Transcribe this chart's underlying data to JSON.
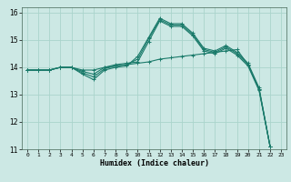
{
  "xlabel": "Humidex (Indice chaleur)",
  "bg_color": "#cce8e4",
  "grid_color": "#aad4cc",
  "line_color": "#1a7a6a",
  "xlim": [
    -0.5,
    23.5
  ],
  "ylim": [
    11,
    16.2
  ],
  "yticks": [
    11,
    12,
    13,
    14,
    15,
    16
  ],
  "xticks": [
    0,
    1,
    2,
    3,
    4,
    5,
    6,
    7,
    8,
    9,
    10,
    11,
    12,
    13,
    14,
    15,
    16,
    17,
    18,
    19,
    20,
    21,
    22,
    23
  ],
  "series": [
    {
      "x": [
        0,
        1,
        2,
        3,
        4,
        5,
        6,
        7,
        8,
        9,
        10,
        11,
        12,
        13,
        14,
        15,
        16,
        17,
        18,
        19,
        20,
        21,
        22
      ],
      "y": [
        13.9,
        13.9,
        13.9,
        14.0,
        14.0,
        13.9,
        13.9,
        14.0,
        14.05,
        14.1,
        14.15,
        14.2,
        14.3,
        14.35,
        14.4,
        14.45,
        14.5,
        14.55,
        14.6,
        14.65,
        14.1,
        13.2,
        11.1
      ]
    },
    {
      "x": [
        0,
        1,
        2,
        3,
        4,
        5,
        6,
        7,
        8,
        9,
        10,
        11,
        12,
        13,
        14,
        15,
        16,
        17,
        18,
        19,
        20,
        21,
        22
      ],
      "y": [
        13.9,
        13.9,
        13.9,
        14.0,
        14.0,
        13.75,
        13.55,
        13.9,
        14.0,
        14.05,
        14.4,
        15.1,
        15.8,
        15.6,
        15.6,
        15.25,
        14.7,
        14.6,
        14.8,
        14.55,
        14.15,
        13.25,
        11.1
      ]
    },
    {
      "x": [
        0,
        1,
        2,
        3,
        4,
        5,
        6,
        7,
        8,
        9,
        10,
        11,
        12,
        13,
        14,
        15,
        16,
        17,
        18,
        19,
        20,
        21,
        22
      ],
      "y": [
        13.9,
        13.9,
        13.9,
        14.0,
        14.0,
        13.8,
        13.65,
        13.95,
        14.05,
        14.1,
        14.3,
        15.05,
        15.75,
        15.55,
        15.55,
        15.2,
        14.65,
        14.55,
        14.75,
        14.5,
        14.1,
        13.2,
        11.1
      ]
    },
    {
      "x": [
        0,
        1,
        2,
        3,
        4,
        5,
        6,
        7,
        8,
        9,
        10,
        11,
        12,
        13,
        14,
        15,
        16,
        17,
        18,
        19,
        20,
        21,
        22
      ],
      "y": [
        13.9,
        13.9,
        13.9,
        14.0,
        14.0,
        13.85,
        13.75,
        14.0,
        14.1,
        14.15,
        14.2,
        14.95,
        15.7,
        15.5,
        15.5,
        15.15,
        14.6,
        14.5,
        14.7,
        14.45,
        14.05,
        13.15,
        11.1
      ]
    }
  ]
}
